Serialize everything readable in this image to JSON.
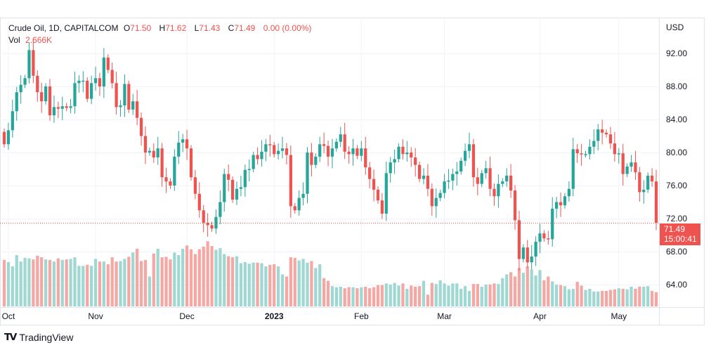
{
  "header": {
    "symbol": "Crude Oil, 1D, CAPITALCOM",
    "open_label": "O",
    "open": "71.50",
    "high_label": "H",
    "high": "71.62",
    "low_label": "L",
    "low": "71.43",
    "close_label": "C",
    "close": "71.49",
    "change": "0.00 (0.00%)",
    "vol_label": "Vol",
    "vol": "2.666K"
  },
  "price_tag": {
    "price": "71.49",
    "countdown": "15:00:41"
  },
  "brand": {
    "logo": "TV",
    "name": "TradingView"
  },
  "colors": {
    "up": "#26a69a",
    "down": "#ef5350",
    "up_vol": "#9fd8d2",
    "down_vol": "#f5a7a4"
  },
  "chart_data": {
    "type": "candlestick",
    "currency_label": "USD",
    "ylim": [
      61.5,
      96
    ],
    "y_ticks": [
      "92.00",
      "88.00",
      "84.00",
      "80.00",
      "76.00",
      "72.00",
      "68.00",
      "64.00"
    ],
    "y_tick_values": [
      92,
      88,
      84,
      80,
      76,
      72,
      68,
      64
    ],
    "x_labels": [
      {
        "label": "Oct",
        "bar": 1
      },
      {
        "label": "Nov",
        "bar": 22
      },
      {
        "label": "Dec",
        "bar": 44
      },
      {
        "label": "2023",
        "bar": 65
      },
      {
        "label": "Feb",
        "bar": 86
      },
      {
        "label": "Mar",
        "bar": 106
      },
      {
        "label": "Apr",
        "bar": 129
      },
      {
        "label": "May",
        "bar": 148
      }
    ],
    "last_price": 71.49,
    "closes": [
      81,
      82.7,
      85,
      87.3,
      88.2,
      89,
      92.4,
      89.3,
      87.3,
      86.2,
      88,
      84.5,
      85.5,
      85.3,
      85.6,
      85.4,
      85.6,
      88.4,
      88.7,
      88.7,
      86.5,
      88.4,
      89,
      88,
      91.5,
      90,
      88.4,
      85.5,
      85.7,
      88.3,
      85.2,
      86.2,
      84.2,
      82,
      80,
      80.2,
      79.4,
      80.5,
      77,
      76.5,
      76,
      79.5,
      81.2,
      81.6,
      80.5,
      77,
      75,
      73,
      71.5,
      71.2,
      70.8,
      72.2,
      74,
      77.4,
      76.7,
      74.3,
      75.6,
      75.8,
      77.9,
      78,
      79.7,
      79.2,
      80.1,
      81,
      80.9,
      79.8,
      80.2,
      80.5,
      79.7,
      73.5,
      73,
      74.5,
      75,
      80,
      78.5,
      79.5,
      81,
      80.8,
      79.5,
      80.5,
      81.3,
      82.2,
      80.1,
      79.8,
      80.5,
      79.6,
      80.5,
      78.2,
      76.8,
      75.5,
      74.2,
      72.6,
      77.5,
      78.8,
      79.2,
      80.7,
      79.8,
      80,
      79.4,
      78.5,
      76.8,
      77.2,
      75.6,
      73.5,
      74.5,
      75.1,
      76.5,
      76.6,
      77.4,
      77.7,
      79,
      80.2,
      81,
      77,
      76.2,
      77.5,
      78.1,
      75.6,
      74.7,
      76.2,
      76.5,
      77.2,
      75.4,
      71.8,
      67.1,
      68.5,
      66.7,
      67.4,
      69.2,
      70.2,
      69.6,
      69.5,
      73.2,
      74,
      73.6,
      74.7,
      75.6,
      80.4,
      79.9,
      79.8,
      79.8,
      80.7,
      81.4,
      82.8,
      82.4,
      82.2,
      81.1,
      79.8,
      79.9,
      77.4,
      78.3,
      78.8,
      77.6,
      75.2,
      75.5,
      77.2,
      76.5,
      71.5
    ],
    "volumes_k": [
      8.7,
      8.3,
      7.5,
      9.6,
      8.4,
      9.1,
      9,
      8.8,
      9.5,
      9.2,
      8.8,
      8.7,
      8.4,
      9,
      8.7,
      8.8,
      8.9,
      9.2,
      7.6,
      7.6,
      7.8,
      7.6,
      8.9,
      8.4,
      8.4,
      7.9,
      9.2,
      8.4,
      8.5,
      8.9,
      9.3,
      10.1,
      10.8,
      8.5,
      8.7,
      5.6,
      9.9,
      10.8,
      9.2,
      9.3,
      8.8,
      10.1,
      9.6,
      10.8,
      11.4,
      10.7,
      9.8,
      10.7,
      11.2,
      12.2,
      11.3,
      10.6,
      10.9,
      9.8,
      9.4,
      9.2,
      9.4,
      8.1,
      8.3,
      8,
      8.2,
      8.2,
      8.1,
      7.5,
      7.8,
      7.9,
      7.5,
      6,
      5.6,
      9.2,
      9.1,
      8.6,
      8.9,
      8.2,
      8.5,
      7.2,
      7.9,
      5.3,
      4.8,
      3.8,
      3.6,
      3.7,
      3.4,
      3.6,
      3.6,
      3.4,
      3.6,
      3.7,
      3.4,
      3.6,
      4,
      4,
      4.3,
      4.1,
      4.4,
      3.9,
      4.3,
      3.3,
      3.9,
      3.7,
      3.8,
      4.8,
      2.2,
      4.4,
      4.2,
      4.9,
      4.3,
      3.9,
      4.3,
      4.3,
      3.3,
      3.8,
      2.9,
      4.2,
      4.2,
      3.7,
      4.1,
      4.1,
      4.3,
      4.2,
      5.3,
      6,
      6.4,
      5.6,
      7.2,
      6.3,
      7.5,
      6.9,
      5.8,
      6.8,
      4.9,
      5.6,
      4.7,
      4.1,
      4,
      3.8,
      3.2,
      3.3,
      4.6,
      3.9,
      3.1,
      3.3,
      2.8,
      2.8,
      2.9,
      2.9,
      3.1,
      3.2,
      3.4,
      3.3,
      3.2,
      3.7,
      3.3,
      3.7,
      3.7,
      3.8,
      2.9,
      2.666
    ]
  }
}
